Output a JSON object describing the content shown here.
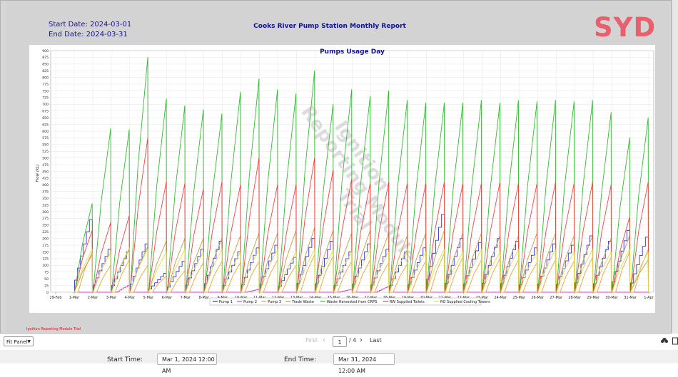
{
  "report": {
    "start_date_label": "Start Date: ",
    "start_date": "2024-03-01",
    "end_date_label": "End Date: ",
    "end_date": "2024-03-31",
    "title": "Cooks River Pump Station Monthly Report",
    "logo": "SYD",
    "watermark_line1": "Reporting Module",
    "watermark_line2": "Ignition",
    "watermark_line3": "Trial",
    "trial_note": "Ignition Reporting Module Trial"
  },
  "colors": {
    "pump1": "#3333cc",
    "pump2": "#cc44cc",
    "pump3": "#e8a33a",
    "trade_waste": "#b8a040",
    "waste_harvested": "#33bb33",
    "rw_toilets": "#ee4444",
    "ro_towers": "#dddd55"
  },
  "chart_data": {
    "type": "line",
    "title": "Pumps Usage Day",
    "ylabel": "Flow (kL)",
    "xlabel": "",
    "ylim": [
      0,
      900
    ],
    "yticks": [
      0,
      25,
      50,
      75,
      100,
      125,
      150,
      175,
      200,
      225,
      250,
      275,
      300,
      325,
      350,
      375,
      400,
      425,
      450,
      475,
      500,
      525,
      550,
      575,
      600,
      625,
      650,
      675,
      700,
      725,
      750,
      775,
      800,
      825,
      850,
      875,
      900
    ],
    "x_tick_labels": [
      "29-Feb",
      "1-Mar",
      "2-Mar",
      "3-Mar",
      "4-Mar",
      "5-Mar",
      "6-Mar",
      "7-Mar",
      "8-Mar",
      "9-Mar",
      "10-Mar",
      "11-Mar",
      "12-Mar",
      "13-Mar",
      "14-Mar",
      "15-Mar",
      "16-Mar",
      "17-Mar",
      "18-Mar",
      "19-Mar",
      "20-Mar",
      "21-Mar",
      "22-Mar",
      "23-Mar",
      "24-Mar",
      "25-Mar",
      "26-Mar",
      "27-Mar",
      "28-Mar",
      "29-Mar",
      "30-Mar",
      "31-Mar",
      "1-Apr"
    ],
    "grid": true,
    "legend_position": "bottom",
    "days": [
      "1-Mar",
      "2-Mar",
      "3-Mar",
      "4-Mar",
      "5-Mar",
      "6-Mar",
      "7-Mar",
      "8-Mar",
      "9-Mar",
      "10-Mar",
      "11-Mar",
      "12-Mar",
      "13-Mar",
      "14-Mar",
      "15-Mar",
      "16-Mar",
      "17-Mar",
      "18-Mar",
      "19-Mar",
      "20-Mar",
      "21-Mar",
      "22-Mar",
      "23-Mar",
      "24-Mar",
      "25-Mar",
      "26-Mar",
      "27-Mar",
      "28-Mar",
      "29-Mar",
      "30-Mar",
      "31-Mar"
    ],
    "series": [
      {
        "name": "Pump 1",
        "color_key": "pump1",
        "daily_peak": [
          270,
          160,
          150,
          180,
          70,
          115,
          160,
          190,
          150,
          165,
          175,
          130,
          200,
          190,
          150,
          180,
          160,
          150,
          165,
          290,
          200,
          185,
          200,
          190,
          165,
          180,
          175,
          210,
          190,
          230,
          205
        ]
      },
      {
        "name": "Pump 2",
        "color_key": "pump2",
        "daily_peak": [
          0,
          0,
          25,
          0,
          0,
          0,
          0,
          0,
          0,
          10,
          0,
          0,
          0,
          0,
          10,
          0,
          20,
          0,
          0,
          0,
          0,
          0,
          0,
          0,
          0,
          0,
          0,
          0,
          0,
          0,
          0
        ]
      },
      {
        "name": "Pump 3",
        "color_key": "pump3",
        "daily_peak": [
          150,
          100,
          120,
          100,
          60,
          80,
          110,
          115,
          110,
          115,
          120,
          100,
          140,
          135,
          115,
          120,
          110,
          105,
          115,
          145,
          130,
          120,
          125,
          120,
          110,
          120,
          115,
          130,
          130,
          150,
          160
        ]
      },
      {
        "name": "Trade Waste",
        "color_key": "trade_waste",
        "daily_peak": [
          140,
          150,
          160,
          170,
          190,
          200,
          200,
          200,
          210,
          220,
          220,
          230,
          240,
          230,
          220,
          230,
          220,
          210,
          220,
          230,
          220,
          220,
          210,
          210,
          220,
          220,
          210,
          210,
          200,
          210,
          120
        ]
      },
      {
        "name": "Waste Harvested from CRPS",
        "color_key": "waste_harvested",
        "daily_peak": [
          330,
          610,
          605,
          875,
          720,
          695,
          680,
          665,
          745,
          795,
          755,
          740,
          825,
          700,
          755,
          730,
          750,
          715,
          705,
          705,
          705,
          715,
          705,
          715,
          710,
          715,
          710,
          715,
          670,
          575,
          650
        ]
      },
      {
        "name": "RW Supplied Toilets",
        "color_key": "rw_toilets",
        "daily_peak": [
          230,
          260,
          285,
          575,
          410,
          405,
          385,
          410,
          400,
          500,
          400,
          400,
          500,
          455,
          420,
          405,
          410,
          405,
          405,
          410,
          405,
          405,
          410,
          405,
          405,
          410,
          405,
          410,
          400,
          280,
          410
        ]
      },
      {
        "name": "RO Supplied Cooling Towers",
        "color_key": "ro_towers",
        "daily_peak": [
          160,
          150,
          165,
          160,
          150,
          160,
          150,
          160,
          150,
          160,
          160,
          150,
          160,
          155,
          150,
          160,
          150,
          160,
          150,
          160,
          150,
          160,
          150,
          160,
          150,
          160,
          150,
          160,
          150,
          160,
          150
        ]
      }
    ]
  },
  "toolbar": {
    "fit_mode": "Fit Panel",
    "first": "First",
    "page": "1",
    "page_total": "/ 4",
    "last": "Last"
  },
  "footer": {
    "start_time_label": "Start Time:",
    "start_time": "Mar 1, 2024 12:00 AM",
    "end_time_label": "End Time:",
    "end_time": "Mar 31, 2024 12:00 AM"
  }
}
